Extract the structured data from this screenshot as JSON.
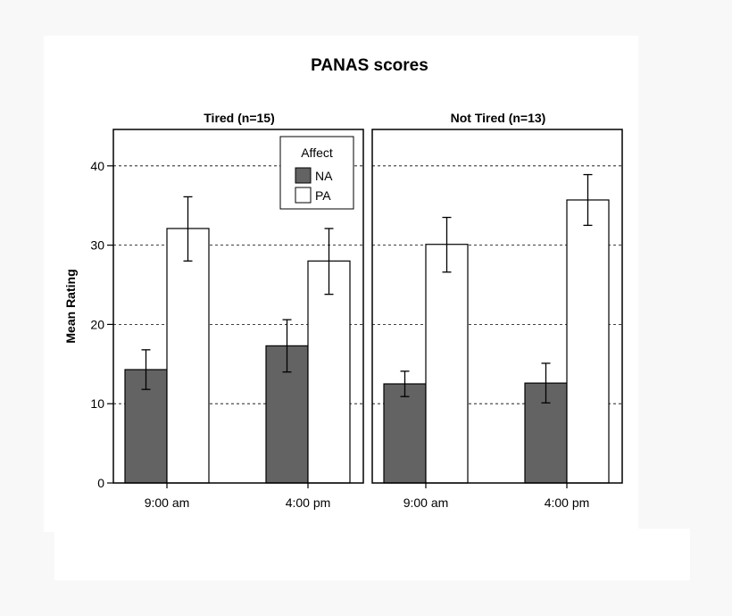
{
  "chart_data": {
    "type": "bar",
    "title": "PANAS scores",
    "ylabel": "Mean Rating",
    "ylim": [
      0,
      45
    ],
    "yticks": [
      0,
      10,
      20,
      30,
      40
    ],
    "grid": "dashed horizontal at 10, 20, 30, 40",
    "legend": {
      "title": "Affect",
      "position": "top-right of first panel",
      "entries": [
        {
          "name": "NA",
          "color": "#636363"
        },
        {
          "name": "PA",
          "color": "#ffffff"
        }
      ]
    },
    "categories": [
      "9:00 am",
      "4:00 pm"
    ],
    "panels": [
      {
        "title": "Tired (n=15)",
        "series": [
          {
            "name": "NA",
            "values": [
              14.3,
              17.3
            ],
            "err_low": [
              11.8,
              14.0
            ],
            "err_high": [
              16.8,
              20.6
            ]
          },
          {
            "name": "PA",
            "values": [
              32.1,
              28.0
            ],
            "err_low": [
              28.0,
              23.8
            ],
            "err_high": [
              36.1,
              32.1
            ]
          }
        ]
      },
      {
        "title": "Not Tired (n=13)",
        "series": [
          {
            "name": "NA",
            "values": [
              12.5,
              12.6
            ],
            "err_low": [
              10.9,
              10.1
            ],
            "err_high": [
              14.1,
              15.1
            ]
          },
          {
            "name": "PA",
            "values": [
              30.1,
              35.7
            ],
            "err_low": [
              26.6,
              32.5
            ],
            "err_high": [
              33.5,
              38.9
            ]
          }
        ]
      }
    ]
  },
  "colors": {
    "na_fill": "#636363",
    "pa_fill": "#ffffff",
    "stroke": "#000000",
    "background": "#f8f8f8"
  }
}
